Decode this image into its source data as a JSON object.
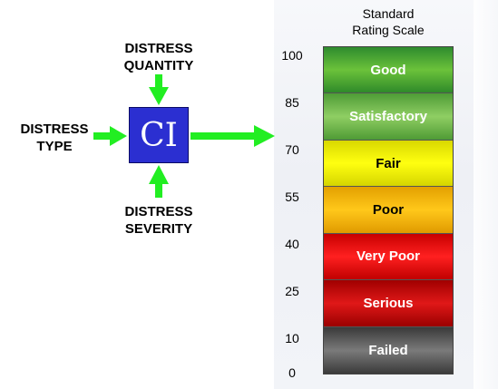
{
  "inputs": {
    "quantity": [
      "DISTRESS",
      "QUANTITY"
    ],
    "type": [
      "DISTRESS",
      "TYPE"
    ],
    "severity": [
      "DISTRESS",
      "SEVERITY"
    ]
  },
  "center_box": {
    "label": "CI",
    "color": "#2b2fd1"
  },
  "arrow_color": "#22ee22",
  "scale": {
    "title": [
      "Standard",
      "Rating Scale"
    ],
    "ticks": [
      "100",
      "85",
      "70",
      "55",
      "40",
      "25",
      "10",
      "0"
    ],
    "bands": [
      {
        "label": "Good",
        "color_top": "#2e8b2e",
        "color_mid": "#6bc23a",
        "color_bot": "#2f8a2a"
      },
      {
        "label": "Satisfactory",
        "color_top": "#4e9c36",
        "color_mid": "#8fce63",
        "color_bot": "#4f9b35"
      },
      {
        "label": "Fair",
        "color_top": "#d8d800",
        "color_mid": "#ffff10",
        "color_bot": "#d5d500"
      },
      {
        "label": "Poor",
        "color_top": "#e3a000",
        "color_mid": "#ffc81a",
        "color_bot": "#e09a00"
      },
      {
        "label": "Very Poor",
        "color_top": "#c80000",
        "color_mid": "#ff2020",
        "color_bot": "#c00000"
      },
      {
        "label": "Serious",
        "color_top": "#a00000",
        "color_mid": "#e01818",
        "color_bot": "#9a0000"
      },
      {
        "label": "Failed",
        "color_top": "#3a3a3a",
        "color_mid": "#7a7a7a",
        "color_bot": "#3a3a3a"
      }
    ]
  }
}
